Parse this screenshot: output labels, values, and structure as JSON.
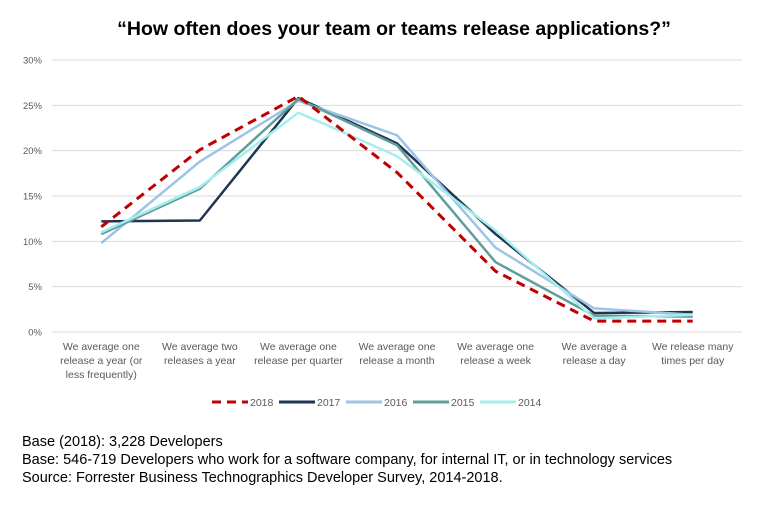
{
  "chart_data": {
    "type": "line",
    "title": "“How often does your team or teams release applications?”",
    "xlabel": "",
    "ylabel": "",
    "categories": [
      "We average one release a year (or less frequently)",
      "We average two releases a year",
      "We average one release per quarter",
      "We average one release a month",
      "We average one release a week",
      "We average a release a day",
      "We release many times per day"
    ],
    "ylim": [
      0,
      30
    ],
    "yticks": [
      "0%",
      "5%",
      "10%",
      "15%",
      "20%",
      "25%",
      "30%"
    ],
    "grid": true,
    "legend_position": "bottom",
    "series": [
      {
        "name": "2018",
        "color": "#c00000",
        "dashed": true,
        "values": [
          11.6,
          20.1,
          26.0,
          17.6,
          6.7,
          1.2,
          1.2
        ]
      },
      {
        "name": "2017",
        "color": "#1f3550",
        "dashed": false,
        "values": [
          12.2,
          12.3,
          25.8,
          20.8,
          10.8,
          2.1,
          2.2
        ]
      },
      {
        "name": "2016",
        "color": "#9dc3e6",
        "dashed": false,
        "values": [
          9.8,
          18.8,
          25.5,
          21.7,
          9.3,
          2.6,
          1.9
        ]
      },
      {
        "name": "2015",
        "color": "#5f9e9a",
        "dashed": false,
        "values": [
          10.8,
          15.8,
          25.7,
          20.6,
          7.7,
          1.8,
          1.7
        ]
      },
      {
        "name": "2014",
        "color": "#a6eeee",
        "dashed": false,
        "values": [
          11.0,
          16.0,
          24.2,
          19.4,
          11.2,
          1.5,
          1.9
        ]
      }
    ]
  },
  "notes": [
    "Base (2018): 3,228 Developers",
    "Base: 546-719  Developers who work for a software company, for internal IT, or in technology services",
    "Source: Forrester Business Technographics Developer Survey, 2014-2018."
  ]
}
